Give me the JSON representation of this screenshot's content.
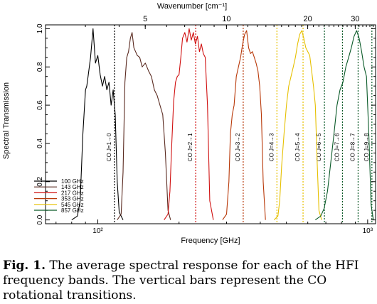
{
  "chart_data": {
    "type": "line",
    "title": "",
    "xlabel": "Frequency [GHz]",
    "ylabel": "Spectral Transmission",
    "top_axis_label": "Wavenumber [cm⁻¹]",
    "x_scale": "log",
    "xlim": [
      64,
      1070
    ],
    "ylim": [
      -0.02,
      1.02
    ],
    "x_ticks_major": [
      {
        "value": 100,
        "label": "10²"
      },
      {
        "value": 1000,
        "label": "10³"
      }
    ],
    "y_ticks": [
      {
        "value": 0.0,
        "label": "0.0"
      },
      {
        "value": 0.2,
        "label": "0.2"
      },
      {
        "value": 0.4,
        "label": "0.4"
      },
      {
        "value": 0.6,
        "label": "0.6"
      },
      {
        "value": 0.8,
        "label": "0.8"
      },
      {
        "value": 1.0,
        "label": "1.0"
      }
    ],
    "top_ticks": [
      {
        "value": 5,
        "label": "5"
      },
      {
        "value": 10,
        "label": "10"
      },
      {
        "value": 20,
        "label": "20"
      },
      {
        "value": 30,
        "label": "30"
      }
    ],
    "legend_position": "bottom-left",
    "series": [
      {
        "name": "100 GHz",
        "color": "#000000",
        "x": [
          80,
          84,
          86,
          88,
          90,
          91,
          92,
          94,
          96,
          98,
          100,
          102,
          104,
          106,
          108,
          110,
          112,
          114,
          116,
          118,
          120,
          124
        ],
        "y": [
          0.0,
          0.02,
          0.1,
          0.45,
          0.68,
          0.7,
          0.75,
          0.85,
          1.0,
          0.82,
          0.86,
          0.76,
          0.7,
          0.75,
          0.68,
          0.72,
          0.6,
          0.68,
          0.55,
          0.2,
          0.04,
          0.0
        ]
      },
      {
        "name": "143 GHz",
        "color": "#5a2a20",
        "x": [
          118,
          122,
          124,
          126,
          128,
          130,
          132,
          134,
          136,
          138,
          140,
          143,
          146,
          150,
          154,
          158,
          162,
          166,
          170,
          174,
          178,
          182,
          186
        ],
        "y": [
          0.0,
          0.03,
          0.25,
          0.72,
          0.85,
          0.88,
          0.95,
          0.98,
          0.9,
          0.88,
          0.86,
          0.85,
          0.8,
          0.82,
          0.78,
          0.75,
          0.68,
          0.65,
          0.6,
          0.55,
          0.35,
          0.05,
          0.0
        ]
      },
      {
        "name": "217 GHz",
        "color": "#d01010",
        "x": [
          176,
          182,
          185,
          188,
          191,
          194,
          197,
          200,
          203,
          206,
          210,
          214,
          218,
          222,
          226,
          230,
          234,
          238,
          242,
          246,
          250,
          255,
          260,
          268
        ],
        "y": [
          0.0,
          0.03,
          0.15,
          0.4,
          0.62,
          0.72,
          0.75,
          0.76,
          0.85,
          0.95,
          0.98,
          0.93,
          1.0,
          0.94,
          0.98,
          0.92,
          0.96,
          0.88,
          0.92,
          0.87,
          0.85,
          0.6,
          0.1,
          0.0
        ]
      },
      {
        "name": "353 GHz",
        "color": "#b83808",
        "x": [
          290,
          300,
          306,
          310,
          315,
          320,
          326,
          332,
          338,
          344,
          350,
          356,
          362,
          368,
          374,
          380,
          386,
          392,
          398,
          404,
          410,
          418
        ],
        "y": [
          0.0,
          0.03,
          0.2,
          0.45,
          0.55,
          0.6,
          0.75,
          0.8,
          0.85,
          0.92,
          0.97,
          0.99,
          0.9,
          0.87,
          0.88,
          0.85,
          0.82,
          0.78,
          0.7,
          0.55,
          0.2,
          0.0
        ]
      },
      {
        "name": "545 GHz",
        "color": "#e6c000",
        "x": [
          450,
          465,
          472,
          480,
          490,
          500,
          510,
          520,
          530,
          540,
          550,
          560,
          570,
          580,
          590,
          600,
          610,
          620,
          630,
          640,
          650,
          660,
          675
        ],
        "y": [
          0.0,
          0.02,
          0.1,
          0.28,
          0.45,
          0.6,
          0.7,
          0.75,
          0.8,
          0.85,
          0.92,
          0.97,
          0.99,
          0.95,
          0.9,
          0.88,
          0.86,
          0.78,
          0.7,
          0.6,
          0.3,
          0.05,
          0.0
        ]
      },
      {
        "name": "857 GHz",
        "color": "#0a5a28",
        "x": [
          640,
          670,
          690,
          710,
          730,
          750,
          770,
          790,
          810,
          830,
          850,
          870,
          890,
          910,
          930,
          950,
          970,
          990,
          1010,
          1030,
          1050
        ],
        "y": [
          0.0,
          0.02,
          0.06,
          0.15,
          0.3,
          0.45,
          0.6,
          0.68,
          0.72,
          0.8,
          0.85,
          0.9,
          0.96,
          0.99,
          0.95,
          0.88,
          0.8,
          0.75,
          0.45,
          0.08,
          0.0
        ]
      }
    ],
    "co_lines": [
      {
        "label": "CO J=1→0",
        "freq": 115.27,
        "color": "#000000"
      },
      {
        "label": "CO J=2→1",
        "freq": 230.54,
        "color": "#d01010"
      },
      {
        "label": "CO J=3→2",
        "freq": 345.8,
        "color": "#b83808"
      },
      {
        "label": "CO J=4→3",
        "freq": 461.04,
        "color": "#e6c000"
      },
      {
        "label": "CO J=5→4",
        "freq": 576.27,
        "color": "#e6c000"
      },
      {
        "label": "CO J=6→5",
        "freq": 691.47,
        "color": "#0a5a28"
      },
      {
        "label": "CO J=7→6",
        "freq": 806.65,
        "color": "#0a5a28"
      },
      {
        "label": "CO J=8→7",
        "freq": 921.8,
        "color": "#0a5a28"
      },
      {
        "label": "CO J=9→8",
        "freq": 1036.9,
        "color": "#0a5a28"
      }
    ]
  },
  "caption": {
    "label": "Fig. 1.",
    "text": "The average spectral response for each of the HFI frequency bands. The vertical bars represent the CO rotational transitions."
  }
}
